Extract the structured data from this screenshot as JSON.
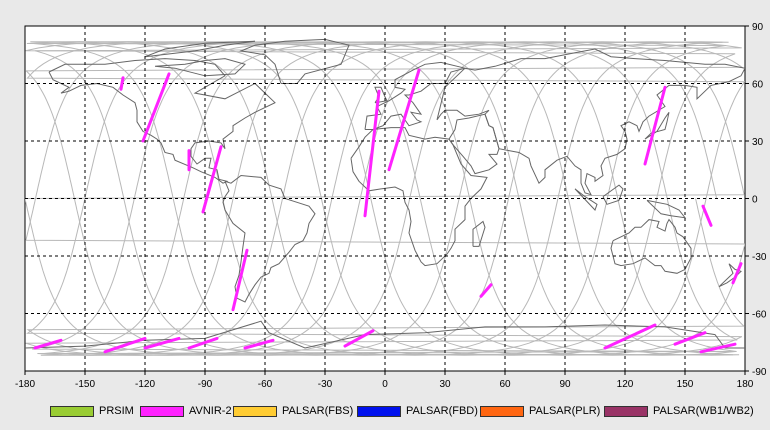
{
  "x_ticks": [
    "-180",
    "-150",
    "-120",
    "-90",
    "-60",
    "-30",
    "0",
    "30",
    "60",
    "90",
    "120",
    "150",
    "180"
  ],
  "y_ticks": [
    "90",
    "60",
    "30",
    "0",
    "-30",
    "-60",
    "-90"
  ],
  "colors": {
    "prsim": "#99cc33",
    "avnir": "#ff22ff",
    "palsar_fbs": "#ffcc33",
    "palsar_fbd": "#0011ee",
    "palsar_plr": "#ff6611",
    "palsar_wb": "#993366",
    "orbit": "#b8b8b8",
    "coast": "#666666"
  },
  "legend": [
    {
      "label": "PRSIM",
      "color": "#99cc33"
    },
    {
      "label": "AVNIR-2",
      "color": "#ff22ff"
    },
    {
      "label": "PALSAR(FBS)",
      "color": "#ffcc33"
    },
    {
      "label": "PALSAR(FBD)",
      "color": "#0011ee"
    },
    {
      "label": "PALSAR(PLR)",
      "color": "#ff6611"
    },
    {
      "label": "PALSAR(WB1/WB2)",
      "color": "#993366"
    }
  ],
  "swaths": [
    [
      [
        -131,
        63
      ],
      [
        -132,
        57
      ]
    ],
    [
      [
        -108,
        65
      ],
      [
        -121,
        30
      ]
    ],
    [
      [
        -98,
        25
      ],
      [
        -98,
        15
      ]
    ],
    [
      [
        -82,
        27
      ],
      [
        -91,
        -7
      ]
    ],
    [
      [
        -69,
        -27
      ],
      [
        -76,
        -58
      ]
    ],
    [
      [
        -3,
        56
      ],
      [
        -10,
        -9
      ]
    ],
    [
      [
        17,
        67
      ],
      [
        2,
        15
      ]
    ],
    [
      [
        53,
        -45
      ],
      [
        48,
        -51
      ]
    ],
    [
      [
        140,
        58
      ],
      [
        130,
        18
      ]
    ],
    [
      [
        159,
        -4
      ],
      [
        163,
        -14
      ]
    ],
    [
      [
        178,
        -34
      ],
      [
        174,
        -44
      ]
    ],
    [
      [
        -175,
        -78
      ],
      [
        -162,
        -74
      ]
    ],
    [
      [
        -140,
        -80
      ],
      [
        -120,
        -73
      ]
    ],
    [
      [
        -120,
        -78
      ],
      [
        -103,
        -73
      ]
    ],
    [
      [
        -98,
        -78
      ],
      [
        -84,
        -73
      ]
    ],
    [
      [
        -70,
        -78
      ],
      [
        -56,
        -74
      ]
    ],
    [
      [
        -20,
        -77
      ],
      [
        -6,
        -69
      ]
    ],
    [
      [
        110,
        -78
      ],
      [
        135,
        -66
      ]
    ],
    [
      [
        145,
        -76
      ],
      [
        160,
        -70
      ]
    ],
    [
      [
        158,
        -80
      ],
      [
        175,
        -76
      ]
    ]
  ]
}
